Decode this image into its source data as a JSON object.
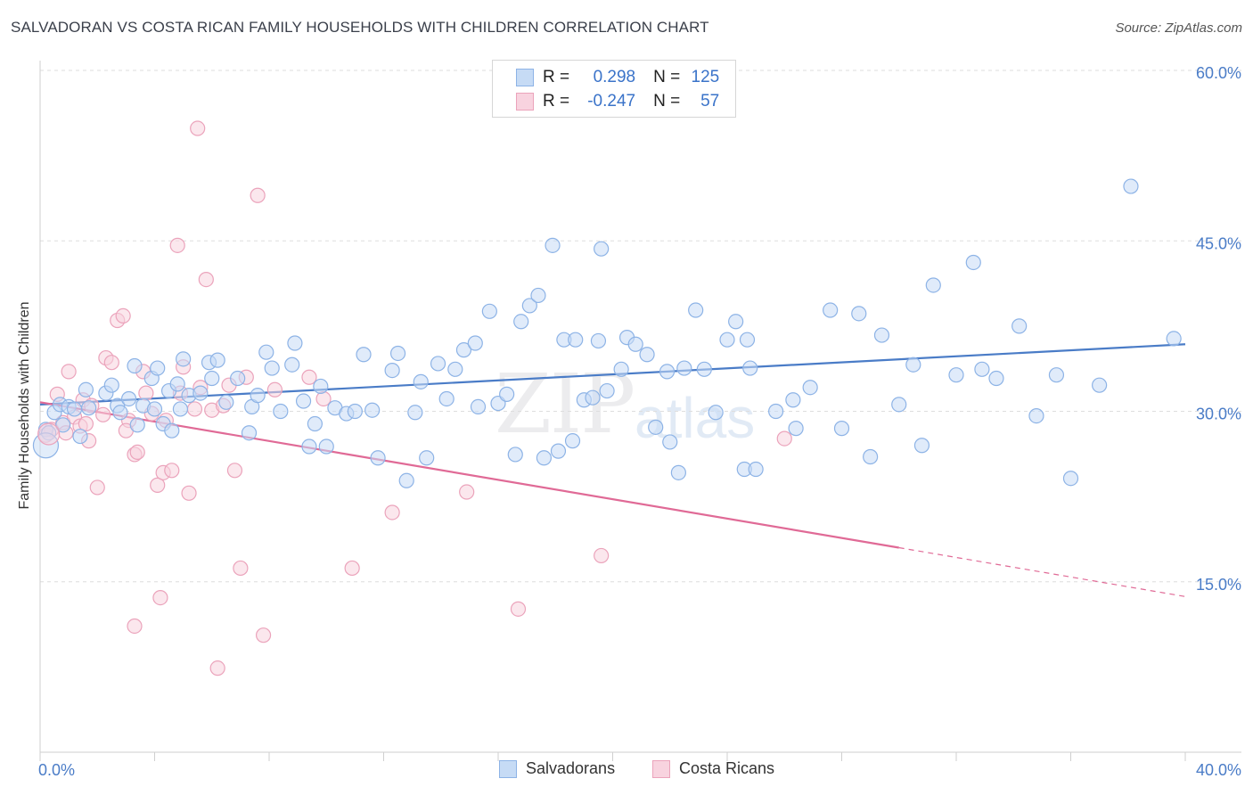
{
  "title": "SALVADORAN VS COSTA RICAN FAMILY HOUSEHOLDS WITH CHILDREN CORRELATION CHART",
  "source": "Source: ZipAtlas.com",
  "watermark": {
    "zip": "ZIP",
    "atlas": "atlas"
  },
  "legend": {
    "rows": [
      {
        "r_label": "R =",
        "r_value": "0.298",
        "n_label": "N =",
        "n_value": "125",
        "color": "#8db3e6",
        "fill": "#c6dbf5"
      },
      {
        "r_label": "R =",
        "r_value": "-0.247",
        "n_label": "N =",
        "n_value": "57",
        "color": "#eba3bb",
        "fill": "#f8d3df"
      }
    ]
  },
  "bottom_legend": [
    {
      "label": "Salvadorans",
      "color": "#8db3e6",
      "fill": "#c6dbf5"
    },
    {
      "label": "Costa Ricans",
      "color": "#eba3bb",
      "fill": "#f8d3df"
    }
  ],
  "chart_data": {
    "type": "scatter",
    "title": "SALVADORAN VS COSTA RICAN FAMILY HOUSEHOLDS WITH CHILDREN CORRELATION CHART",
    "xlabel": "",
    "ylabel": "Family Households with Children",
    "xlim": [
      0,
      40
    ],
    "ylim": [
      0,
      60
    ],
    "x_tick_labels": [
      "0.0%",
      "40.0%"
    ],
    "y_ticks": [
      15,
      30,
      45,
      60
    ],
    "y_tick_labels": [
      "15.0%",
      "30.0%",
      "45.0%",
      "60.0%"
    ],
    "grid": true,
    "legend_position": "top-center",
    "series": [
      {
        "name": "Salvadorans",
        "color": "#4a7cc7",
        "marker_fill": "#c6dbf5",
        "marker_stroke": "#8db3e6",
        "trend": {
          "x": [
            0,
            40
          ],
          "y": [
            30.6,
            35.9
          ]
        },
        "points": [
          [
            0.2,
            28.4
          ],
          [
            0.3,
            28.1
          ],
          [
            0.5,
            29.9
          ],
          [
            0.7,
            30.6
          ],
          [
            0.8,
            28.8
          ],
          [
            1.0,
            30.4
          ],
          [
            1.2,
            30.2
          ],
          [
            1.4,
            27.8
          ],
          [
            1.6,
            31.9
          ],
          [
            1.7,
            30.3
          ],
          [
            2.3,
            31.6
          ],
          [
            2.5,
            32.3
          ],
          [
            2.7,
            30.5
          ],
          [
            2.8,
            29.9
          ],
          [
            3.1,
            31.1
          ],
          [
            3.3,
            34.0
          ],
          [
            3.4,
            28.8
          ],
          [
            3.6,
            30.5
          ],
          [
            3.9,
            32.9
          ],
          [
            4.0,
            30.2
          ],
          [
            4.1,
            33.8
          ],
          [
            4.3,
            28.9
          ],
          [
            4.5,
            31.8
          ],
          [
            4.8,
            32.4
          ],
          [
            4.9,
            30.2
          ],
          [
            5.0,
            34.6
          ],
          [
            5.2,
            31.4
          ],
          [
            5.6,
            31.6
          ],
          [
            5.9,
            34.3
          ],
          [
            6.0,
            32.9
          ],
          [
            6.2,
            34.5
          ],
          [
            6.5,
            30.8
          ],
          [
            6.9,
            32.9
          ],
          [
            7.3,
            28.1
          ],
          [
            7.4,
            30.4
          ],
          [
            7.6,
            31.4
          ],
          [
            7.9,
            35.2
          ],
          [
            8.1,
            33.8
          ],
          [
            8.4,
            30.0
          ],
          [
            8.8,
            34.1
          ],
          [
            8.9,
            36.0
          ],
          [
            9.2,
            30.9
          ],
          [
            9.4,
            26.9
          ],
          [
            9.6,
            28.9
          ],
          [
            9.8,
            32.2
          ],
          [
            10.0,
            26.9
          ],
          [
            10.3,
            30.3
          ],
          [
            10.7,
            29.8
          ],
          [
            11.0,
            30.0
          ],
          [
            11.3,
            35.0
          ],
          [
            11.6,
            30.1
          ],
          [
            11.8,
            25.9
          ],
          [
            12.3,
            33.6
          ],
          [
            12.5,
            35.1
          ],
          [
            12.8,
            23.9
          ],
          [
            13.1,
            29.9
          ],
          [
            13.3,
            32.6
          ],
          [
            13.5,
            25.9
          ],
          [
            13.9,
            34.2
          ],
          [
            14.2,
            31.1
          ],
          [
            14.5,
            33.7
          ],
          [
            14.8,
            35.4
          ],
          [
            15.2,
            36.0
          ],
          [
            15.3,
            30.4
          ],
          [
            15.7,
            38.8
          ],
          [
            16.0,
            30.7
          ],
          [
            16.3,
            31.5
          ],
          [
            16.6,
            26.2
          ],
          [
            16.8,
            37.9
          ],
          [
            17.1,
            39.3
          ],
          [
            17.4,
            40.2
          ],
          [
            17.6,
            25.9
          ],
          [
            17.9,
            44.6
          ],
          [
            18.1,
            26.5
          ],
          [
            18.3,
            36.3
          ],
          [
            18.7,
            36.3
          ],
          [
            19.0,
            31.0
          ],
          [
            19.3,
            31.2
          ],
          [
            19.5,
            36.2
          ],
          [
            19.8,
            31.8
          ],
          [
            20.3,
            33.7
          ],
          [
            20.5,
            36.5
          ],
          [
            20.8,
            35.9
          ],
          [
            21.2,
            35.0
          ],
          [
            21.5,
            28.6
          ],
          [
            21.9,
            33.5
          ],
          [
            22.3,
            24.6
          ],
          [
            22.5,
            33.8
          ],
          [
            22.9,
            38.9
          ],
          [
            23.2,
            33.7
          ],
          [
            23.6,
            29.9
          ],
          [
            24.0,
            36.3
          ],
          [
            24.3,
            37.9
          ],
          [
            24.6,
            24.9
          ],
          [
            24.8,
            33.8
          ],
          [
            25.0,
            24.9
          ],
          [
            25.7,
            30.0
          ],
          [
            26.3,
            31.0
          ],
          [
            26.9,
            32.1
          ],
          [
            27.6,
            38.9
          ],
          [
            28.0,
            28.5
          ],
          [
            28.6,
            38.6
          ],
          [
            29.0,
            26.0
          ],
          [
            29.4,
            36.7
          ],
          [
            30.0,
            30.6
          ],
          [
            30.5,
            34.1
          ],
          [
            30.8,
            27.0
          ],
          [
            31.2,
            41.1
          ],
          [
            32.0,
            33.2
          ],
          [
            32.6,
            43.1
          ],
          [
            32.9,
            33.7
          ],
          [
            33.4,
            32.9
          ],
          [
            34.2,
            37.5
          ],
          [
            34.8,
            29.6
          ],
          [
            35.5,
            33.2
          ],
          [
            36.0,
            24.1
          ],
          [
            37.0,
            32.3
          ],
          [
            38.1,
            49.8
          ],
          [
            39.6,
            36.4
          ],
          [
            19.6,
            44.3
          ],
          [
            26.4,
            28.5
          ],
          [
            22.0,
            27.3
          ],
          [
            18.6,
            27.4
          ],
          [
            24.7,
            36.3
          ],
          [
            4.6,
            28.3
          ]
        ]
      },
      {
        "name": "Costa Ricans",
        "color": "#e06a96",
        "marker_fill": "#f8d3df",
        "marker_stroke": "#eba3bb",
        "trend": {
          "x": [
            0,
            30.0
          ],
          "y": [
            30.8,
            18.0
          ]
        },
        "trend_dashed": {
          "x": [
            30.0,
            40
          ],
          "y": [
            18.0,
            13.7
          ]
        },
        "points": [
          [
            0.2,
            27.9
          ],
          [
            0.4,
            28.4
          ],
          [
            0.6,
            31.5
          ],
          [
            0.8,
            29.0
          ],
          [
            1.0,
            33.5
          ],
          [
            1.2,
            29.5
          ],
          [
            1.4,
            28.7
          ],
          [
            1.5,
            31.0
          ],
          [
            1.7,
            27.4
          ],
          [
            1.8,
            30.5
          ],
          [
            2.0,
            23.3
          ],
          [
            2.3,
            34.7
          ],
          [
            2.5,
            34.3
          ],
          [
            2.7,
            38.0
          ],
          [
            2.9,
            38.4
          ],
          [
            3.1,
            29.2
          ],
          [
            3.3,
            26.2
          ],
          [
            3.4,
            26.4
          ],
          [
            3.6,
            33.5
          ],
          [
            3.7,
            31.6
          ],
          [
            3.9,
            29.8
          ],
          [
            4.1,
            23.5
          ],
          [
            4.3,
            24.6
          ],
          [
            4.4,
            29.2
          ],
          [
            4.6,
            24.8
          ],
          [
            4.8,
            44.6
          ],
          [
            5.0,
            33.9
          ],
          [
            5.2,
            22.8
          ],
          [
            5.4,
            30.2
          ],
          [
            5.6,
            32.1
          ],
          [
            5.8,
            41.6
          ],
          [
            6.0,
            30.1
          ],
          [
            6.2,
            7.4
          ],
          [
            6.4,
            30.5
          ],
          [
            6.6,
            32.3
          ],
          [
            6.8,
            24.8
          ],
          [
            7.0,
            16.2
          ],
          [
            7.2,
            33.0
          ],
          [
            7.6,
            49.0
          ],
          [
            7.8,
            10.3
          ],
          [
            8.2,
            31.9
          ],
          [
            9.4,
            33.0
          ],
          [
            9.9,
            31.1
          ],
          [
            10.9,
            16.2
          ],
          [
            12.3,
            21.1
          ],
          [
            14.9,
            22.9
          ],
          [
            16.7,
            12.6
          ],
          [
            19.6,
            17.3
          ],
          [
            26.0,
            27.6
          ],
          [
            3.3,
            11.1
          ],
          [
            4.2,
            13.6
          ],
          [
            5.5,
            54.9
          ],
          [
            2.2,
            29.7
          ],
          [
            0.9,
            28.1
          ],
          [
            1.6,
            28.9
          ],
          [
            3.0,
            28.3
          ],
          [
            4.9,
            31.6
          ]
        ]
      }
    ]
  }
}
